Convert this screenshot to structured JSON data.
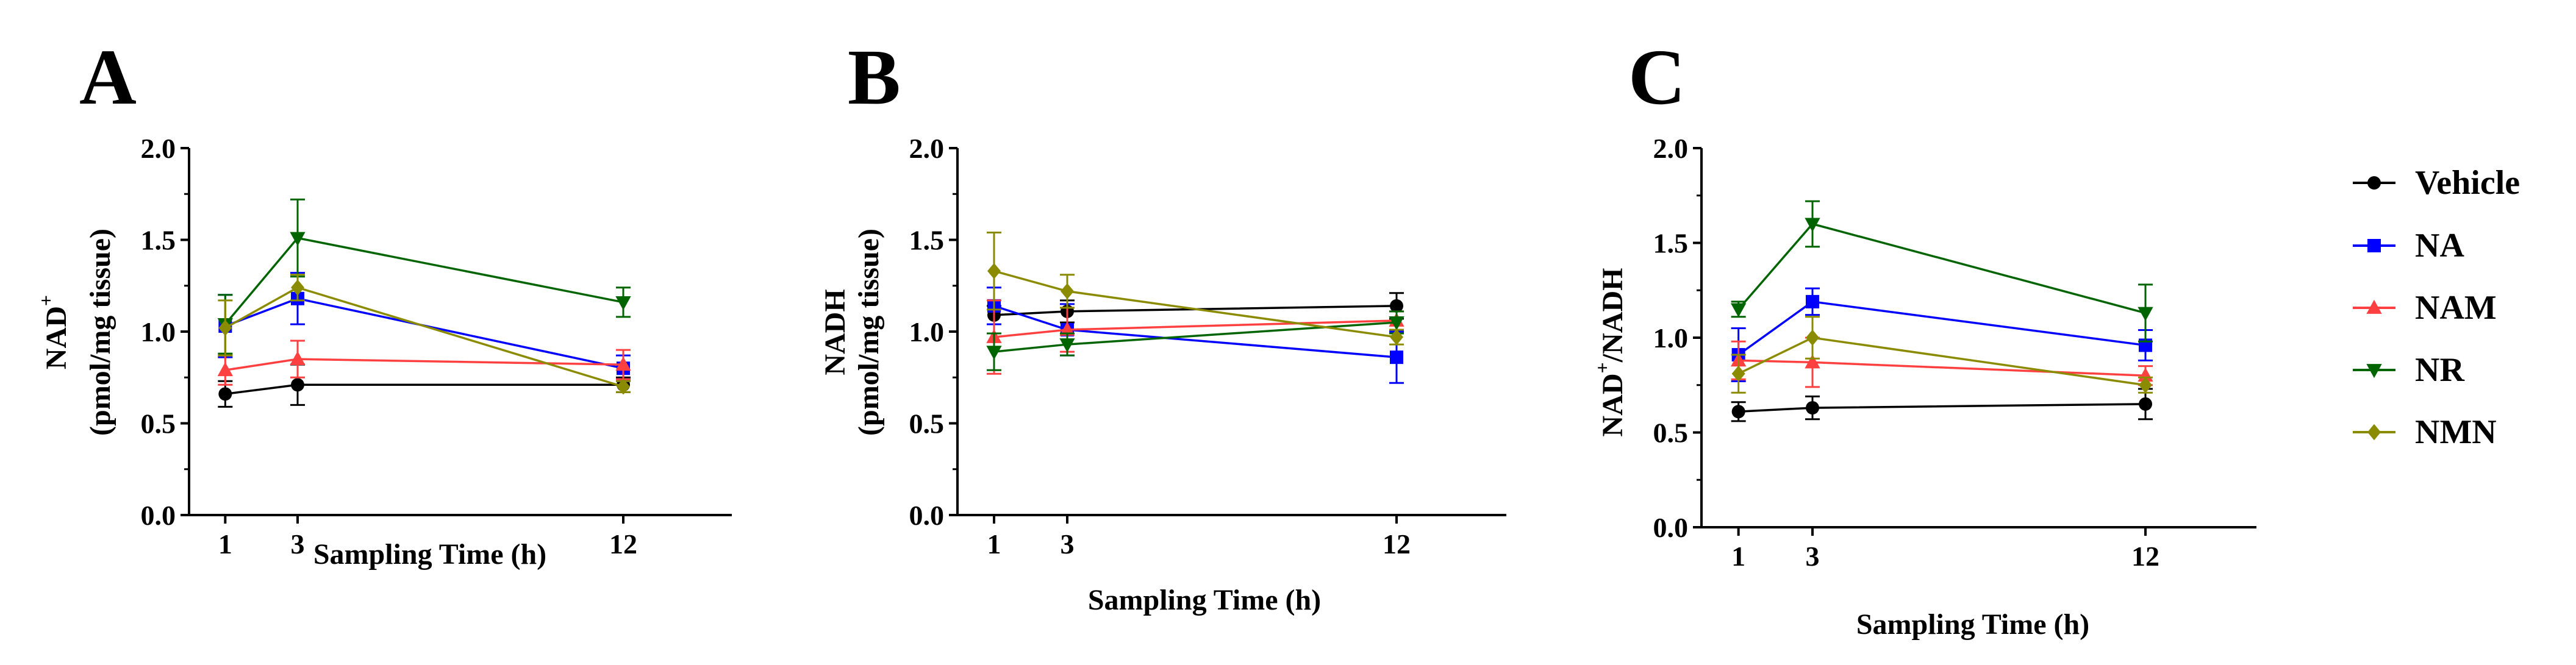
{
  "colors": {
    "Vehicle": "#000000",
    "NA": "#0000ff",
    "NAM": "#ff4040",
    "NR": "#006400",
    "NMN": "#8b8b00"
  },
  "legend": {
    "items": [
      {
        "name": "Vehicle",
        "marker": "circle"
      },
      {
        "name": "NA",
        "marker": "square"
      },
      {
        "name": "NAM",
        "marker": "triangle-up"
      },
      {
        "name": "NR",
        "marker": "triangle-down"
      },
      {
        "name": "NMN",
        "marker": "diamond"
      }
    ]
  },
  "chart_data": [
    {
      "type": "line",
      "panel": "A",
      "title": "",
      "xlabel": "Sampling Time  (h)",
      "ylabel_line1": "NAD",
      "ylabel_sup": "+",
      "ylabel_line2": "(pmol/mg tissue)",
      "x": [
        1,
        3,
        12
      ],
      "x_ticks": [
        "1",
        "3",
        "12"
      ],
      "xlim": [
        0,
        15
      ],
      "ylim": [
        0,
        2
      ],
      "y_ticks": [
        "0.0",
        "0.5",
        "1.0",
        "1.5",
        "2.0"
      ],
      "series": [
        {
          "name": "Vehicle",
          "values": [
            0.66,
            0.71,
            0.71
          ],
          "errors": [
            0.07,
            0.11,
            0.04
          ]
        },
        {
          "name": "NA",
          "values": [
            1.03,
            1.18,
            0.8
          ],
          "errors": [
            0.17,
            0.14,
            0.07
          ]
        },
        {
          "name": "NAM",
          "values": [
            0.79,
            0.85,
            0.82
          ],
          "errors": [
            0.08,
            0.1,
            0.08
          ]
        },
        {
          "name": "NR",
          "values": [
            1.04,
            1.51,
            1.16
          ],
          "errors": [
            0.16,
            0.21,
            0.08
          ]
        },
        {
          "name": "NMN",
          "values": [
            1.02,
            1.24,
            0.7
          ],
          "errors": [
            0.15,
            0.07,
            0.03
          ]
        }
      ]
    },
    {
      "type": "line",
      "panel": "B",
      "title": "",
      "xlabel": "Sampling Time  (h)",
      "ylabel_line1": "NADH",
      "ylabel_sup": "",
      "ylabel_line2": "(pmol/mg tissue)",
      "x": [
        1,
        3,
        12
      ],
      "x_ticks": [
        "1",
        "3",
        "12"
      ],
      "xlim": [
        0,
        15
      ],
      "ylim": [
        0,
        2
      ],
      "y_ticks": [
        "0.0",
        "0.5",
        "1.0",
        "1.5",
        "2.0"
      ],
      "series": [
        {
          "name": "Vehicle",
          "values": [
            1.09,
            1.11,
            1.14
          ],
          "errors": [
            0.05,
            0.06,
            0.07
          ]
        },
        {
          "name": "NA",
          "values": [
            1.14,
            1.01,
            0.86
          ],
          "errors": [
            0.1,
            0.14,
            0.14
          ]
        },
        {
          "name": "NAM",
          "values": [
            0.97,
            1.01,
            1.06
          ],
          "errors": [
            0.2,
            0.12,
            0.05
          ]
        },
        {
          "name": "NR",
          "values": [
            0.89,
            0.93,
            1.05
          ],
          "errors": [
            0.1,
            0.06,
            0.06
          ]
        },
        {
          "name": "NMN",
          "values": [
            1.33,
            1.22,
            0.97
          ],
          "errors": [
            0.21,
            0.09,
            0.04
          ]
        }
      ]
    },
    {
      "type": "line",
      "panel": "C",
      "title": "",
      "xlabel": "Sampling Time  (h)",
      "ylabel_line1": "NAD",
      "ylabel_sup": "+",
      "ylabel_line2": "/NADH",
      "x": [
        1,
        3,
        12
      ],
      "x_ticks": [
        "1",
        "3",
        "12"
      ],
      "xlim": [
        0,
        15
      ],
      "ylim": [
        0,
        2
      ],
      "y_ticks": [
        "0.0",
        "0.5",
        "1.0",
        "1.5",
        "2.0"
      ],
      "series": [
        {
          "name": "Vehicle",
          "values": [
            0.61,
            0.63,
            0.65
          ],
          "errors": [
            0.05,
            0.06,
            0.08
          ]
        },
        {
          "name": "NA",
          "values": [
            0.91,
            1.19,
            0.96
          ],
          "errors": [
            0.14,
            0.07,
            0.08
          ]
        },
        {
          "name": "NAM",
          "values": [
            0.88,
            0.87,
            0.8
          ],
          "errors": [
            0.1,
            0.13,
            0.05
          ]
        },
        {
          "name": "NR",
          "values": [
            1.15,
            1.6,
            1.13
          ],
          "errors": [
            0.04,
            0.12,
            0.15
          ]
        },
        {
          "name": "NMN",
          "values": [
            0.81,
            1.0,
            0.75
          ],
          "errors": [
            0.1,
            0.11,
            0.04
          ]
        }
      ]
    }
  ]
}
